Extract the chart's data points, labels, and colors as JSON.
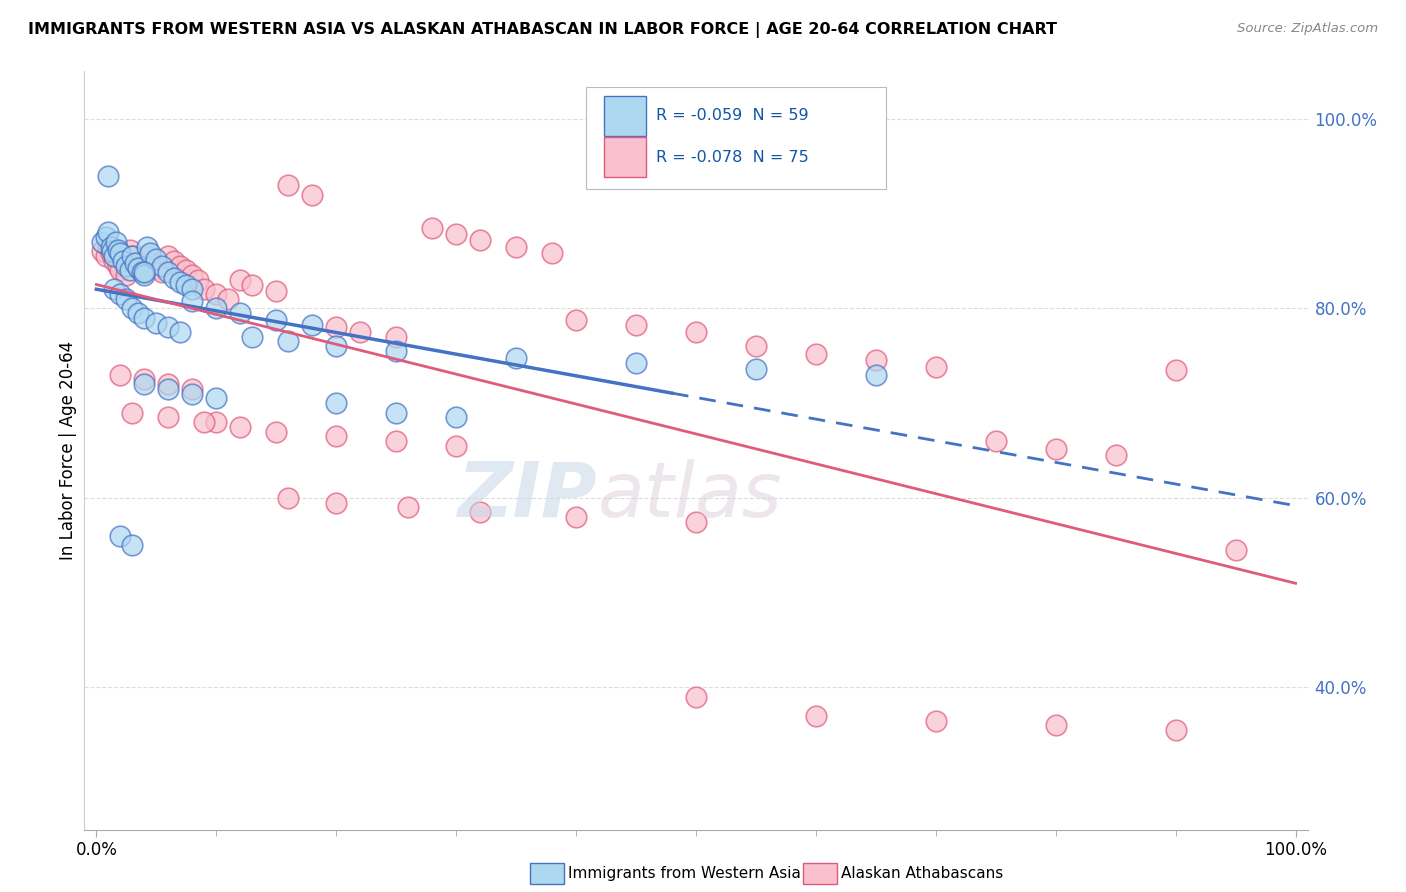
{
  "title": "IMMIGRANTS FROM WESTERN ASIA VS ALASKAN ATHABASCAN IN LABOR FORCE | AGE 20-64 CORRELATION CHART",
  "source": "Source: ZipAtlas.com",
  "ylabel": "In Labor Force | Age 20-64",
  "color_blue": "#ADD8F0",
  "color_pink": "#F9C0CE",
  "line_blue": "#4472C4",
  "line_pink": "#E05A7A",
  "watermark_zip": "ZIP",
  "watermark_atlas": "atlas",
  "legend_text1": "R = -0.059  N = 59",
  "legend_text2": "R = -0.078  N = 75",
  "grid_color": "#DDDDDD",
  "blue_x": [
    0.005,
    0.008,
    0.01,
    0.012,
    0.013,
    0.015,
    0.016,
    0.018,
    0.02,
    0.022,
    0.025,
    0.028,
    0.03,
    0.032,
    0.035,
    0.038,
    0.04,
    0.042,
    0.045,
    0.05,
    0.055,
    0.06,
    0.065,
    0.07,
    0.075,
    0.08,
    0.01,
    0.015,
    0.02,
    0.025,
    0.03,
    0.035,
    0.04,
    0.05,
    0.06,
    0.07,
    0.08,
    0.1,
    0.12,
    0.15,
    0.18,
    0.2,
    0.25,
    0.3,
    0.04,
    0.06,
    0.08,
    0.1,
    0.13,
    0.16,
    0.2,
    0.25,
    0.35,
    0.45,
    0.55,
    0.65,
    0.02,
    0.03,
    0.04
  ],
  "blue_y": [
    0.87,
    0.875,
    0.88,
    0.865,
    0.86,
    0.855,
    0.87,
    0.862,
    0.858,
    0.85,
    0.845,
    0.84,
    0.855,
    0.848,
    0.842,
    0.838,
    0.835,
    0.865,
    0.858,
    0.852,
    0.845,
    0.838,
    0.832,
    0.828,
    0.825,
    0.82,
    0.94,
    0.82,
    0.815,
    0.81,
    0.8,
    0.795,
    0.79,
    0.785,
    0.78,
    0.775,
    0.808,
    0.8,
    0.795,
    0.788,
    0.782,
    0.7,
    0.69,
    0.685,
    0.72,
    0.715,
    0.71,
    0.705,
    0.77,
    0.765,
    0.76,
    0.755,
    0.748,
    0.742,
    0.736,
    0.73,
    0.56,
    0.55,
    0.838
  ],
  "pink_x": [
    0.005,
    0.008,
    0.01,
    0.012,
    0.015,
    0.018,
    0.02,
    0.025,
    0.028,
    0.03,
    0.032,
    0.035,
    0.04,
    0.042,
    0.045,
    0.05,
    0.055,
    0.06,
    0.065,
    0.07,
    0.075,
    0.08,
    0.085,
    0.09,
    0.1,
    0.11,
    0.12,
    0.13,
    0.15,
    0.16,
    0.18,
    0.2,
    0.22,
    0.25,
    0.28,
    0.3,
    0.32,
    0.35,
    0.38,
    0.4,
    0.45,
    0.5,
    0.55,
    0.6,
    0.65,
    0.7,
    0.75,
    0.8,
    0.85,
    0.9,
    0.95,
    0.02,
    0.04,
    0.06,
    0.08,
    0.1,
    0.15,
    0.2,
    0.25,
    0.3,
    0.03,
    0.06,
    0.09,
    0.12,
    0.16,
    0.2,
    0.26,
    0.32,
    0.4,
    0.5,
    0.6,
    0.7,
    0.8,
    0.9,
    0.5
  ],
  "pink_y": [
    0.86,
    0.855,
    0.865,
    0.858,
    0.85,
    0.845,
    0.84,
    0.835,
    0.862,
    0.855,
    0.848,
    0.842,
    0.838,
    0.855,
    0.848,
    0.842,
    0.838,
    0.855,
    0.85,
    0.845,
    0.84,
    0.835,
    0.83,
    0.82,
    0.815,
    0.81,
    0.83,
    0.825,
    0.818,
    0.93,
    0.92,
    0.78,
    0.775,
    0.77,
    0.885,
    0.878,
    0.872,
    0.865,
    0.858,
    0.788,
    0.782,
    0.775,
    0.76,
    0.752,
    0.745,
    0.738,
    0.66,
    0.652,
    0.645,
    0.735,
    0.545,
    0.73,
    0.725,
    0.72,
    0.715,
    0.68,
    0.67,
    0.665,
    0.66,
    0.655,
    0.69,
    0.685,
    0.68,
    0.675,
    0.6,
    0.595,
    0.59,
    0.585,
    0.58,
    0.575,
    0.37,
    0.365,
    0.36,
    0.355,
    0.39
  ]
}
